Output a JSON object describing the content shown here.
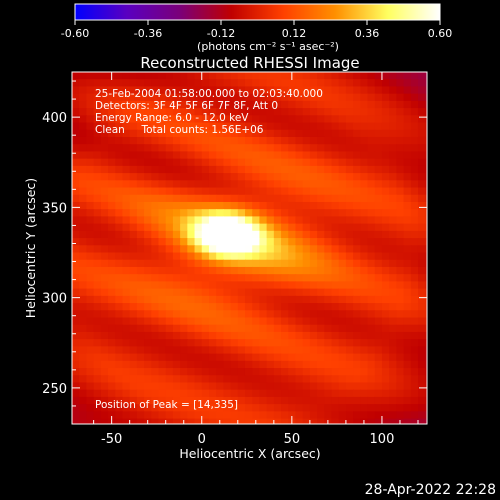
{
  "chart_data": {
    "type": "heatmap",
    "title": "Reconstructed RHESSI Image",
    "xlabel": "Heliocentric X (arcsec)",
    "ylabel": "Heliocentric Y (arcsec)",
    "xlim": [
      -72,
      125
    ],
    "ylim": [
      230,
      425
    ],
    "x_ticks": [
      -50,
      0,
      50,
      100
    ],
    "y_ticks": [
      250,
      300,
      350,
      400
    ],
    "colorbar": {
      "range": [
        -0.6,
        0.6
      ],
      "ticks": [
        "-0.60",
        "-0.36",
        "-0.12",
        "0.12",
        "0.36",
        "0.60"
      ],
      "unit": "(photons cm⁻² s⁻¹ asec⁻²)",
      "colormap": [
        "#0000ff",
        "#5a00c0",
        "#7a007a",
        "#c00000",
        "#ff4000",
        "#ff9000",
        "#ffff60",
        "#ffffff"
      ]
    },
    "annotations": [
      "25-Feb-2004 01:58:00.000 to 02:03:40.000",
      "Detectors: 3F 4F 5F 6F 7F 8F, Att 0",
      "Energy Range: 6.0 - 12.0 keV",
      "Clean     Total counts: 1.56E+06"
    ],
    "peak_label": "Position of Peak = [14,335]",
    "peak": {
      "x": 14,
      "y": 335
    },
    "background_level": 0.02,
    "sources": [
      {
        "x": 14,
        "y": 335,
        "amp": 0.62,
        "sx": 12,
        "sy": 8
      },
      {
        "x": 20,
        "y": 330,
        "amp": 0.25,
        "sx": 35,
        "sy": 22
      }
    ],
    "grid": false
  },
  "timestamp": "28-Apr-2022 22:28"
}
